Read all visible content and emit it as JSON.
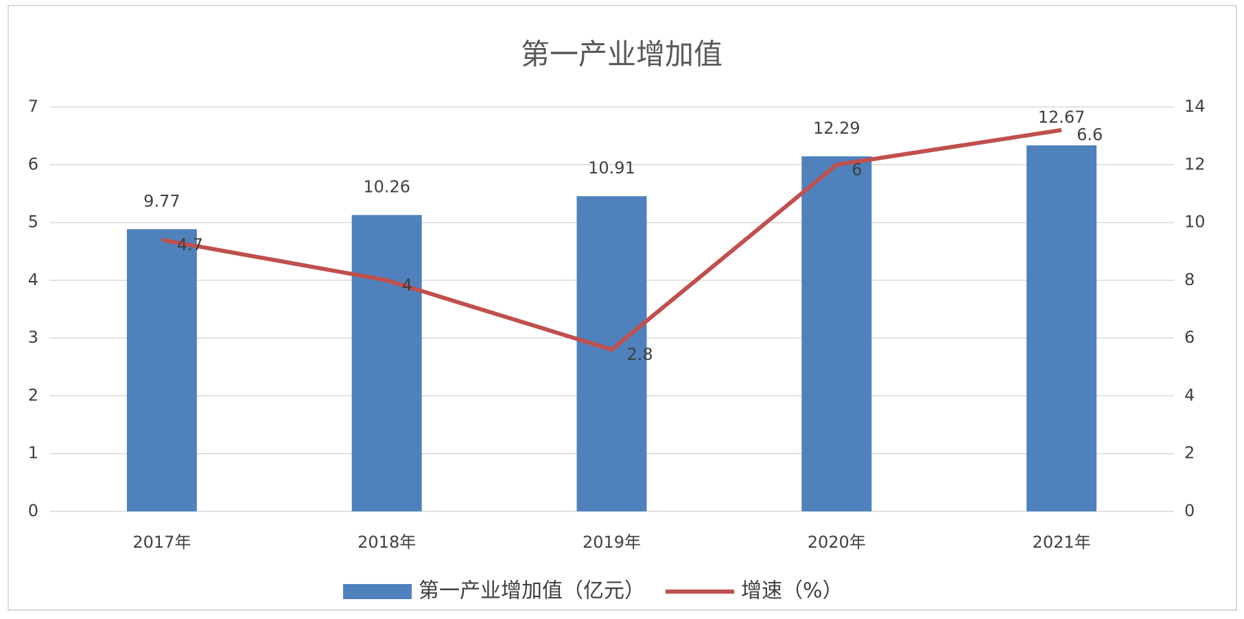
{
  "chart_data": {
    "type": "bar-line",
    "title": "第一产业增加值",
    "categories": [
      "2017年",
      "2018年",
      "2019年",
      "2020年",
      "2021年"
    ],
    "series": [
      {
        "name": "第一产业增加值（亿元）",
        "type": "bar",
        "axis": "y2",
        "color": "#4f81bd",
        "values": [
          9.77,
          10.26,
          10.91,
          12.29,
          12.67
        ]
      },
      {
        "name": "增速（%）",
        "type": "line",
        "axis": "y",
        "color": "#c0504d",
        "values": [
          4.7,
          4,
          2.8,
          6,
          6.6
        ]
      }
    ],
    "ylim": [
      0,
      7
    ],
    "yticks": [
      0,
      1,
      2,
      3,
      4,
      5,
      6,
      7
    ],
    "y2lim": [
      0,
      14
    ],
    "y2ticks": [
      0,
      2,
      4,
      6,
      8,
      10,
      12,
      14
    ],
    "grid": true,
    "legend": "bottom"
  }
}
